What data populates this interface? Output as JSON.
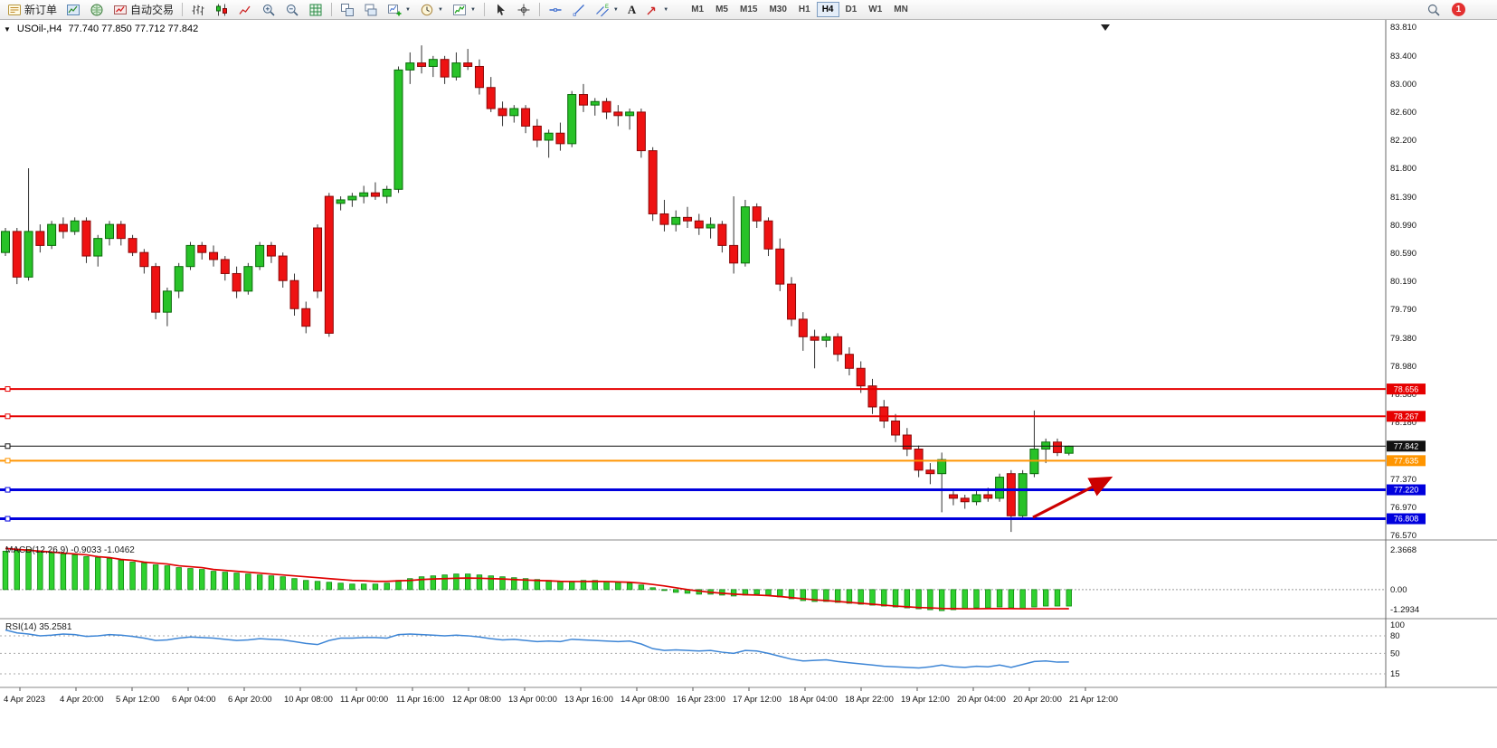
{
  "window": {
    "notification_badge": "1"
  },
  "toolbar": {
    "items": [
      {
        "type": "button",
        "name": "new-order-button",
        "icon": "new-order-icon",
        "label": "新订单"
      },
      {
        "type": "button",
        "name": "chart-window-button",
        "icon": "chart-window-icon"
      },
      {
        "type": "button",
        "name": "market-watch-button",
        "icon": "market-watch-icon"
      },
      {
        "type": "button",
        "name": "auto-trading-button",
        "icon": "auto-trading-icon",
        "label": "自动交易"
      },
      {
        "type": "sep"
      },
      {
        "type": "button",
        "name": "bars-chart-button",
        "icon": "bar-chart-icon"
      },
      {
        "type": "button",
        "name": "candlestick-chart-button",
        "icon": "candlestick-chart-icon"
      },
      {
        "type": "button",
        "name": "line-chart-button",
        "icon": "line-chart-icon"
      },
      {
        "type": "button",
        "name": "zoom-in-button",
        "icon": "zoom-in-icon"
      },
      {
        "type": "button",
        "name": "zoom-out-button",
        "icon": "zoom-out-icon"
      },
      {
        "type": "button",
        "name": "grid-button",
        "icon": "grid-icon"
      },
      {
        "type": "sep"
      },
      {
        "type": "button",
        "name": "tile-windows-button",
        "icon": "tile-windows-icon"
      },
      {
        "type": "button",
        "name": "cascade-windows-button",
        "icon": "cascade-windows-icon"
      },
      {
        "type": "button",
        "name": "new-chart-button",
        "icon": "new-chart-icon",
        "dropdown": true
      },
      {
        "type": "button",
        "name": "periods-button",
        "icon": "period-clock-icon",
        "dropdown": true
      },
      {
        "type": "button",
        "name": "indicators-button",
        "icon": "indicators-icon",
        "dropdown": true
      },
      {
        "type": "sep"
      },
      {
        "type": "button",
        "name": "cursor-button",
        "icon": "cursor-icon"
      },
      {
        "type": "button",
        "name": "crosshair-button",
        "icon": "crosshair-icon"
      },
      {
        "type": "sep"
      },
      {
        "type": "button",
        "name": "horizontal-line-button",
        "icon": "horizontal-line-icon"
      },
      {
        "type": "button",
        "name": "trendline-button",
        "icon": "trendline-icon"
      },
      {
        "type": "button",
        "name": "channel-button",
        "icon": "channel-icon",
        "dropdown": true
      },
      {
        "type": "button",
        "name": "text-tool-button",
        "label": "A",
        "bold": true
      },
      {
        "type": "button",
        "name": "arrows-tool-button",
        "icon": "arrows-tool-icon",
        "dropdown": true
      }
    ],
    "timeframes": [
      "M1",
      "M5",
      "M15",
      "M30",
      "H1",
      "H4",
      "D1",
      "W1",
      "MN"
    ],
    "active_timeframe": "H4"
  },
  "chart": {
    "symbol_label": "USOil-,H4",
    "ohlc": "77.740 77.850 77.712 77.842",
    "price_axis_labels": [
      "83.810",
      "83.400",
      "83.000",
      "82.600",
      "82.200",
      "81.800",
      "81.390",
      "80.990",
      "80.590",
      "80.190",
      "79.790",
      "79.380",
      "78.980",
      "78.580",
      "78.180",
      "77.370",
      "76.970",
      "76.570"
    ],
    "hlines": [
      {
        "price": 78.656,
        "label": "78.656",
        "color": "#e60000",
        "thickness": 2
      },
      {
        "price": 78.267,
        "label": "78.267",
        "color": "#e60000",
        "thickness": 2
      },
      {
        "price": 77.842,
        "label": "77.842",
        "color": "#111111",
        "thickness": 1
      },
      {
        "price": 77.635,
        "label": "77.635",
        "color": "#ff9500",
        "thickness": 2
      },
      {
        "price": 77.22,
        "label": "77.220",
        "color": "#0000dd",
        "thickness": 3
      },
      {
        "price": 76.808,
        "label": "76.808",
        "color": "#0000dd",
        "thickness": 3
      }
    ],
    "colors": {
      "up": "#28c228",
      "down": "#ee1212",
      "up_edge": "#0a6a0a",
      "down_edge": "#8a0808",
      "wick": "#333333",
      "macd_hist": "#2fd12f",
      "macd_hist_edge": "#118811",
      "macd_signal": "#e00000",
      "rsi_line": "#3e86d6",
      "arrow": "#cc0000"
    }
  },
  "chart_data": {
    "type": "candlestick",
    "symbol": "USOil",
    "timeframe": "H4",
    "price_range": [
      76.57,
      83.81
    ],
    "candles": [
      [
        80.6,
        80.95,
        80.55,
        80.9
      ],
      [
        80.9,
        80.95,
        80.15,
        80.25
      ],
      [
        80.25,
        81.8,
        80.2,
        80.9
      ],
      [
        80.9,
        81.0,
        80.6,
        80.7
      ],
      [
        80.7,
        81.05,
        80.65,
        81.0
      ],
      [
        81.0,
        81.1,
        80.8,
        80.9
      ],
      [
        80.9,
        81.1,
        80.85,
        81.05
      ],
      [
        81.05,
        81.1,
        80.45,
        80.55
      ],
      [
        80.55,
        80.85,
        80.4,
        80.8
      ],
      [
        80.8,
        81.05,
        80.7,
        81.0
      ],
      [
        81.0,
        81.05,
        80.7,
        80.8
      ],
      [
        80.8,
        80.85,
        80.55,
        80.6
      ],
      [
        80.6,
        80.65,
        80.3,
        80.4
      ],
      [
        80.4,
        80.45,
        79.65,
        79.75
      ],
      [
        79.75,
        80.1,
        79.55,
        80.05
      ],
      [
        80.05,
        80.45,
        79.95,
        80.4
      ],
      [
        80.4,
        80.75,
        80.35,
        80.7
      ],
      [
        80.7,
        80.75,
        80.5,
        80.6
      ],
      [
        80.6,
        80.7,
        80.4,
        80.5
      ],
      [
        80.5,
        80.55,
        80.2,
        80.3
      ],
      [
        80.3,
        80.4,
        79.95,
        80.05
      ],
      [
        80.05,
        80.45,
        80.0,
        80.4
      ],
      [
        80.4,
        80.75,
        80.35,
        80.7
      ],
      [
        80.7,
        80.75,
        80.45,
        80.55
      ],
      [
        80.55,
        80.6,
        80.1,
        80.2
      ],
      [
        80.2,
        80.3,
        79.7,
        79.8
      ],
      [
        79.8,
        79.9,
        79.45,
        79.55
      ],
      [
        80.95,
        81.0,
        79.95,
        80.05
      ],
      [
        81.4,
        81.45,
        79.4,
        79.45
      ],
      [
        81.3,
        81.4,
        81.2,
        81.35
      ],
      [
        81.35,
        81.45,
        81.25,
        81.4
      ],
      [
        81.4,
        81.55,
        81.3,
        81.45
      ],
      [
        81.45,
        81.6,
        81.35,
        81.4
      ],
      [
        81.4,
        81.55,
        81.3,
        81.5
      ],
      [
        81.5,
        83.25,
        81.45,
        83.2
      ],
      [
        83.2,
        83.45,
        83.0,
        83.3
      ],
      [
        83.3,
        83.55,
        83.15,
        83.25
      ],
      [
        83.25,
        83.4,
        83.1,
        83.35
      ],
      [
        83.35,
        83.4,
        83.0,
        83.1
      ],
      [
        83.1,
        83.45,
        83.05,
        83.3
      ],
      [
        83.3,
        83.5,
        83.2,
        83.25
      ],
      [
        83.25,
        83.35,
        82.85,
        82.95
      ],
      [
        82.95,
        83.1,
        82.6,
        82.65
      ],
      [
        82.65,
        82.75,
        82.4,
        82.55
      ],
      [
        82.55,
        82.7,
        82.45,
        82.65
      ],
      [
        82.65,
        82.7,
        82.3,
        82.4
      ],
      [
        82.4,
        82.5,
        82.1,
        82.2
      ],
      [
        82.2,
        82.35,
        81.95,
        82.3
      ],
      [
        82.3,
        82.45,
        82.05,
        82.15
      ],
      [
        82.15,
        82.9,
        82.1,
        82.85
      ],
      [
        82.85,
        83.0,
        82.6,
        82.7
      ],
      [
        82.7,
        82.8,
        82.55,
        82.75
      ],
      [
        82.75,
        82.8,
        82.5,
        82.6
      ],
      [
        82.6,
        82.7,
        82.4,
        82.55
      ],
      [
        82.55,
        82.65,
        82.35,
        82.6
      ],
      [
        82.6,
        82.65,
        81.95,
        82.05
      ],
      [
        82.05,
        82.1,
        81.05,
        81.15
      ],
      [
        81.15,
        81.35,
        80.9,
        81.0
      ],
      [
        81.0,
        81.2,
        80.9,
        81.1
      ],
      [
        81.1,
        81.25,
        80.95,
        81.05
      ],
      [
        81.05,
        81.15,
        80.85,
        80.95
      ],
      [
        80.95,
        81.1,
        80.8,
        81.0
      ],
      [
        81.0,
        81.05,
        80.6,
        80.7
      ],
      [
        80.7,
        81.4,
        80.3,
        80.45
      ],
      [
        80.45,
        81.35,
        80.4,
        81.25
      ],
      [
        81.25,
        81.3,
        80.95,
        81.05
      ],
      [
        81.05,
        81.1,
        80.55,
        80.65
      ],
      [
        80.65,
        80.8,
        80.05,
        80.15
      ],
      [
        80.15,
        80.25,
        79.55,
        79.65
      ],
      [
        79.65,
        79.75,
        79.2,
        79.4
      ],
      [
        79.4,
        79.5,
        78.95,
        79.35
      ],
      [
        79.35,
        79.45,
        79.25,
        79.4
      ],
      [
        79.4,
        79.45,
        79.05,
        79.15
      ],
      [
        79.15,
        79.25,
        78.85,
        78.95
      ],
      [
        78.95,
        79.05,
        78.6,
        78.7
      ],
      [
        78.7,
        78.8,
        78.3,
        78.4
      ],
      [
        78.4,
        78.5,
        78.1,
        78.2
      ],
      [
        78.2,
        78.3,
        77.9,
        78.0
      ],
      [
        78.0,
        78.1,
        77.7,
        77.8
      ],
      [
        77.8,
        77.85,
        77.4,
        77.5
      ],
      [
        77.5,
        77.6,
        77.3,
        77.45
      ],
      [
        77.45,
        77.75,
        76.9,
        77.65
      ],
      [
        77.15,
        77.2,
        77.0,
        77.1
      ],
      [
        77.1,
        77.15,
        76.95,
        77.05
      ],
      [
        77.05,
        77.2,
        77.0,
        77.15
      ],
      [
        77.15,
        77.25,
        77.05,
        77.1
      ],
      [
        77.1,
        77.45,
        77.05,
        77.4
      ],
      [
        77.45,
        77.5,
        76.62,
        76.85
      ],
      [
        76.85,
        77.5,
        76.8,
        77.45
      ],
      [
        77.45,
        78.35,
        77.4,
        77.8
      ],
      [
        77.8,
        77.95,
        77.6,
        77.9
      ],
      [
        77.9,
        77.95,
        77.7,
        77.75
      ],
      [
        77.74,
        77.85,
        77.71,
        77.84
      ]
    ],
    "time_labels": [
      "4 Apr 2023",
      "4 Apr 20:00",
      "5 Apr 12:00",
      "6 Apr 04:00",
      "6 Apr 20:00",
      "10 Apr 08:00",
      "11 Apr 00:00",
      "11 Apr 16:00",
      "12 Apr 08:00",
      "13 Apr 00:00",
      "13 Apr 16:00",
      "14 Apr 08:00",
      "16 Apr 23:00",
      "17 Apr 12:00",
      "18 Apr 04:00",
      "18 Apr 22:00",
      "19 Apr 12:00",
      "20 Apr 04:00",
      "20 Apr 20:00",
      "21 Apr 12:00"
    ],
    "macd": {
      "label": "MACD(12,26,9) -0.9033 -1.0462",
      "axis_labels": [
        "2.3668",
        "0.00",
        "-1.2934"
      ],
      "range": [
        -1.2934,
        2.3668
      ],
      "histogram": [
        2.1,
        2.15,
        2.2,
        2.1,
        2.0,
        1.95,
        1.9,
        1.8,
        1.75,
        1.7,
        1.6,
        1.5,
        1.45,
        1.35,
        1.3,
        1.2,
        1.15,
        1.1,
        1.0,
        0.95,
        0.9,
        0.85,
        0.8,
        0.75,
        0.7,
        0.6,
        0.5,
        0.45,
        0.4,
        0.35,
        0.3,
        0.3,
        0.3,
        0.35,
        0.5,
        0.6,
        0.7,
        0.75,
        0.8,
        0.85,
        0.85,
        0.8,
        0.75,
        0.7,
        0.65,
        0.6,
        0.55,
        0.5,
        0.45,
        0.45,
        0.5,
        0.5,
        0.45,
        0.4,
        0.35,
        0.25,
        0.1,
        -0.05,
        -0.15,
        -0.2,
        -0.25,
        -0.25,
        -0.3,
        -0.35,
        -0.3,
        -0.25,
        -0.3,
        -0.4,
        -0.5,
        -0.6,
        -0.65,
        -0.65,
        -0.7,
        -0.75,
        -0.8,
        -0.85,
        -0.9,
        -0.95,
        -1.0,
        -1.05,
        -1.1,
        -1.15,
        -1.1,
        -1.05,
        -1.0,
        -1.0,
        -0.95,
        -1.0,
        -1.05,
        -0.95,
        -0.9,
        -0.9,
        -0.9
      ],
      "signal": [
        2.25,
        2.2,
        2.15,
        2.1,
        2.05,
        2.0,
        1.95,
        1.9,
        1.8,
        1.75,
        1.65,
        1.6,
        1.5,
        1.45,
        1.4,
        1.3,
        1.25,
        1.2,
        1.1,
        1.05,
        1.0,
        0.95,
        0.9,
        0.85,
        0.8,
        0.75,
        0.7,
        0.65,
        0.6,
        0.55,
        0.5,
        0.48,
        0.45,
        0.45,
        0.48,
        0.5,
        0.55,
        0.58,
        0.6,
        0.62,
        0.63,
        0.62,
        0.6,
        0.58,
        0.55,
        0.52,
        0.5,
        0.48,
        0.45,
        0.44,
        0.44,
        0.45,
        0.44,
        0.42,
        0.4,
        0.35,
        0.28,
        0.2,
        0.1,
        0.0,
        -0.08,
        -0.15,
        -0.2,
        -0.25,
        -0.28,
        -0.3,
        -0.33,
        -0.38,
        -0.44,
        -0.5,
        -0.56,
        -0.6,
        -0.65,
        -0.7,
        -0.75,
        -0.8,
        -0.85,
        -0.9,
        -0.94,
        -0.98,
        -1.0,
        -1.03,
        -1.04,
        -1.05,
        -1.05,
        -1.04,
        -1.04,
        -1.04,
        -1.05,
        -1.05,
        -1.05,
        -1.05,
        -1.0462
      ]
    },
    "rsi": {
      "label": "RSI(14) 35.2581",
      "axis_labels": [
        "100",
        "80",
        "50",
        "15"
      ],
      "levels": [
        80,
        50,
        15
      ],
      "values": [
        90,
        85,
        83,
        80,
        81,
        83,
        82,
        79,
        80,
        82,
        81,
        79,
        76,
        72,
        73,
        76,
        78,
        77,
        76,
        74,
        72,
        73,
        75,
        74,
        73,
        70,
        67,
        65,
        72,
        76,
        76,
        77,
        77,
        76,
        82,
        83,
        82,
        81,
        80,
        81,
        80,
        78,
        75,
        73,
        74,
        72,
        70,
        71,
        70,
        74,
        73,
        72,
        71,
        70,
        71,
        66,
        58,
        55,
        56,
        55,
        54,
        55,
        52,
        50,
        55,
        54,
        50,
        45,
        40,
        37,
        38,
        39,
        36,
        34,
        32,
        30,
        28,
        27,
        26,
        25,
        27,
        30,
        27,
        26,
        28,
        27,
        30,
        26,
        31,
        36,
        37,
        35,
        35.26
      ]
    }
  }
}
